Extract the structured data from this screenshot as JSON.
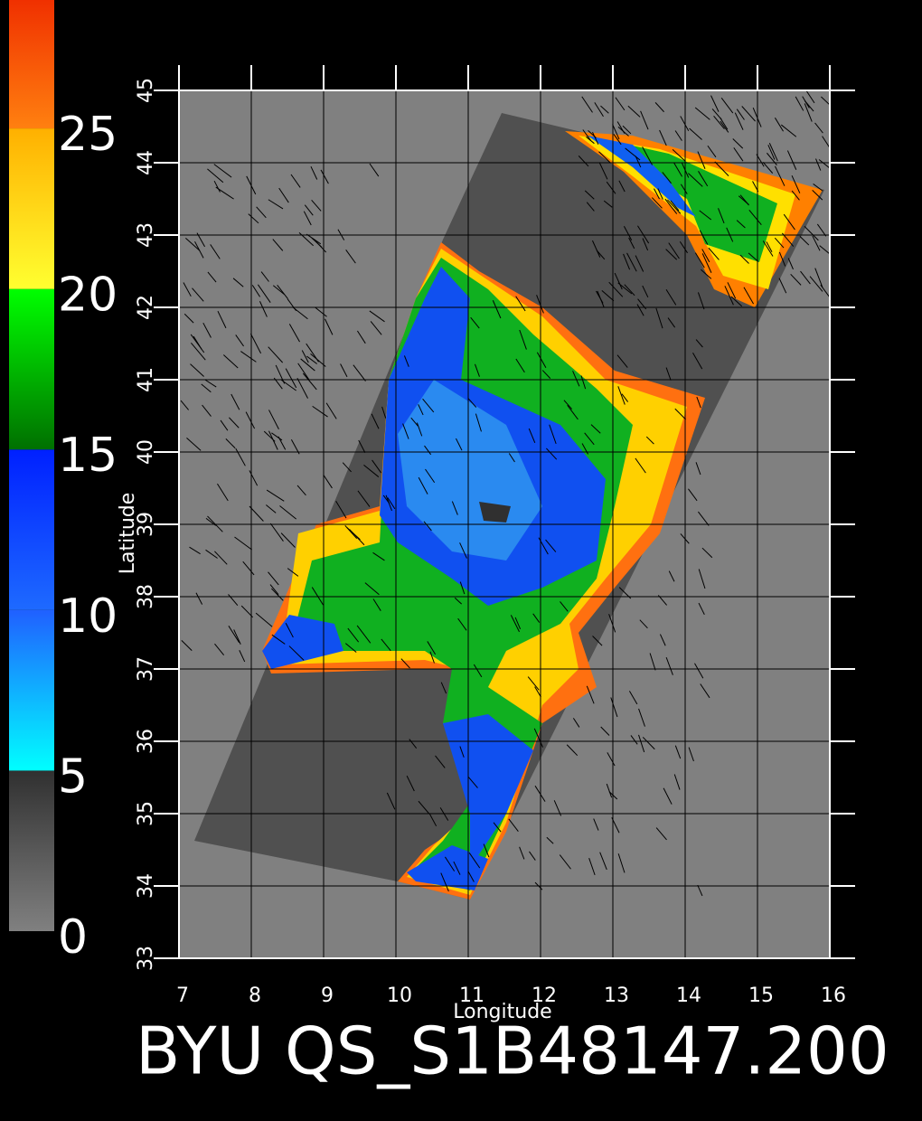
{
  "map": {
    "title": "BYU QS_S1B48147.200",
    "x_label": "Longitude",
    "y_label": "Latitude",
    "xlim": [
      7,
      16
    ],
    "xticks": [
      7,
      8,
      9,
      10,
      11,
      12,
      13,
      14,
      15,
      16
    ],
    "ylim": [
      33,
      45
    ],
    "yticks": [
      33,
      34,
      35,
      36,
      37,
      38,
      39,
      40,
      41,
      42,
      43,
      44,
      45
    ],
    "colorbar": {
      "lim": [
        0,
        29
      ],
      "ticks": [
        0,
        5,
        10,
        15,
        20,
        25
      ]
    }
  }
}
